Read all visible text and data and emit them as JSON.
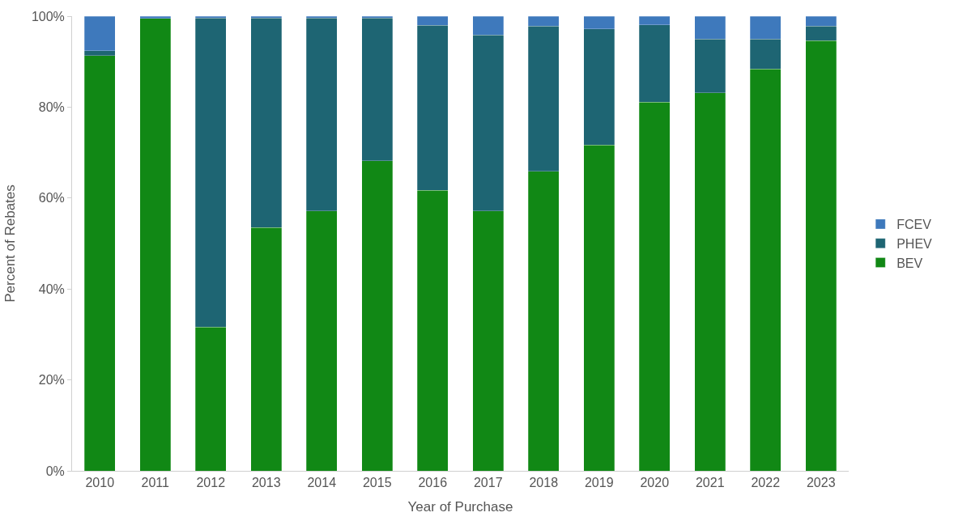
{
  "chart_data": {
    "type": "bar",
    "stacked": true,
    "xlabel": "Year of Purchase",
    "ylabel": "Percent of Rebates",
    "categories": [
      "2010",
      "2011",
      "2012",
      "2013",
      "2014",
      "2015",
      "2016",
      "2017",
      "2018",
      "2019",
      "2020",
      "2021",
      "2022",
      "2023"
    ],
    "series": [
      {
        "name": "BEV",
        "color": "#118815",
        "values": [
          91.3,
          99.5,
          31.6,
          53.5,
          57.2,
          68.2,
          61.7,
          57.2,
          65.9,
          71.7,
          81.1,
          83.1,
          88.4,
          94.6
        ]
      },
      {
        "name": "PHEV",
        "color": "#1e6573",
        "values": [
          1.1,
          0,
          68.0,
          46.1,
          42.4,
          31.4,
          36.3,
          38.7,
          31.9,
          25.5,
          17.0,
          11.9,
          6.6,
          3.2
        ]
      },
      {
        "name": "FCEV",
        "color": "#3e79bc",
        "values": [
          7.6,
          0.5,
          0.4,
          0.4,
          0.4,
          0.4,
          2.0,
          4.1,
          2.2,
          2.8,
          1.9,
          5.0,
          5.0,
          2.2
        ]
      }
    ],
    "ylim": [
      0,
      100
    ],
    "yticks": [
      {
        "value": 0,
        "label": "0%"
      },
      {
        "value": 20,
        "label": "20%"
      },
      {
        "value": 40,
        "label": "40%"
      },
      {
        "value": 60,
        "label": "60%"
      },
      {
        "value": 80,
        "label": "80%"
      },
      {
        "value": 100,
        "label": "100%"
      }
    ],
    "legend": "right"
  }
}
